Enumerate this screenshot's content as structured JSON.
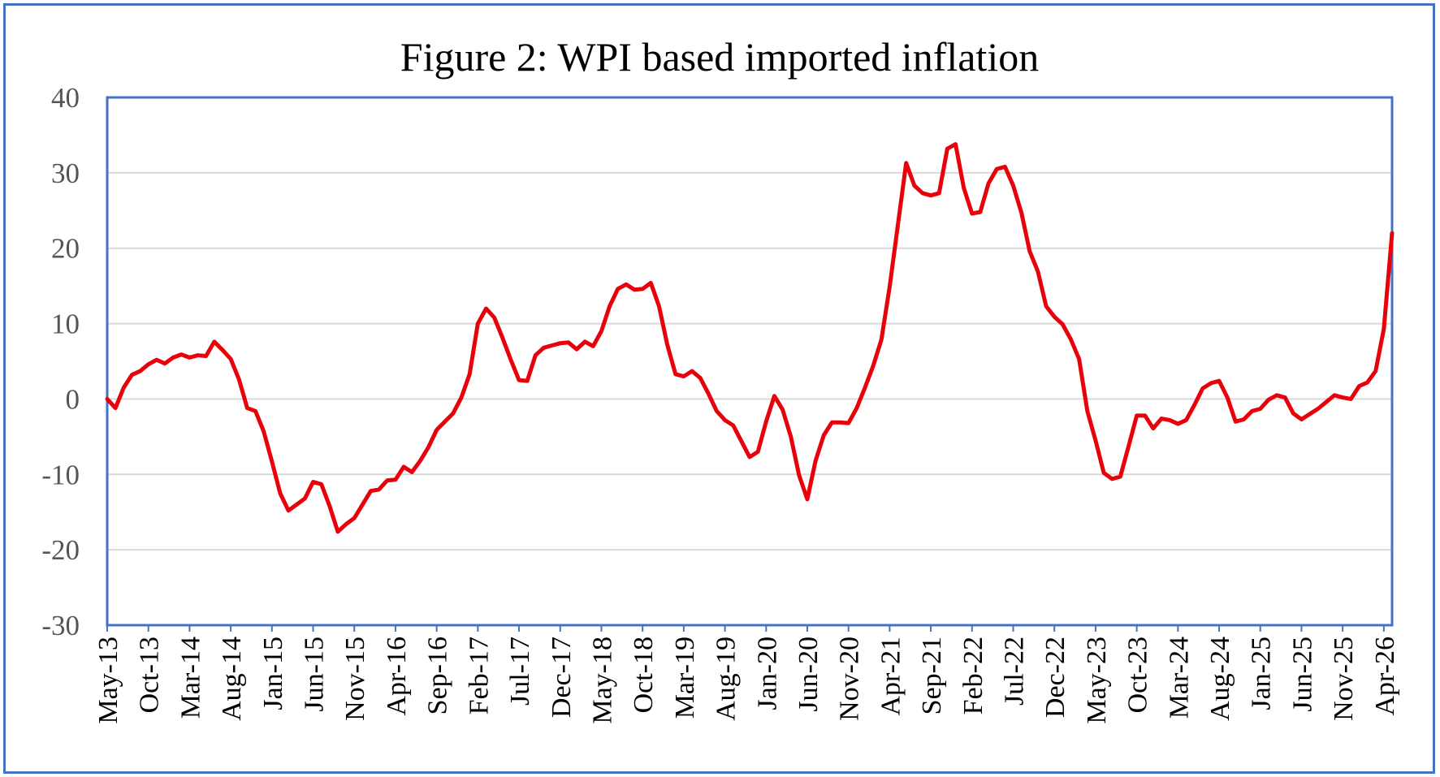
{
  "chart_data": {
    "type": "line",
    "title": "Figure 2: WPI based imported inflation",
    "xlabel": "",
    "ylabel": "",
    "ylim": [
      -30,
      40
    ],
    "y_ticks": [
      -30,
      -20,
      -10,
      0,
      10,
      20,
      30,
      40
    ],
    "x_tick_labels": [
      "May-13",
      "Oct-13",
      "Mar-14",
      "Aug-14",
      "Jan-15",
      "Jun-15",
      "Nov-15",
      "Apr-16",
      "Sep-16",
      "Feb-17",
      "Jul-17",
      "Dec-17",
      "May-18",
      "Oct-18",
      "Mar-19",
      "Aug-19",
      "Jan-20",
      "Jun-20",
      "Nov-20",
      "Apr-21",
      "Sep-21",
      "Feb-22",
      "Jul-22",
      "Dec-22",
      "May-23",
      "Oct-23",
      "Mar-24",
      "Aug-24",
      "Jan-25",
      "Jun-25",
      "Nov-25",
      "Apr-26"
    ],
    "x_start": "May-13",
    "x_end": "Apr-26",
    "grid": true,
    "legend": "none",
    "line_color": "#e8000b",
    "series": [
      {
        "values": [
          0.0,
          -1.2,
          1.5,
          3.2,
          3.7,
          4.6,
          5.2,
          4.7,
          5.5,
          5.9,
          5.5,
          5.8,
          5.7,
          7.6,
          6.5,
          5.3,
          2.6,
          -1.2,
          -1.6,
          -4.3,
          -8.3,
          -12.5,
          -14.8,
          -14.0,
          -13.2,
          -11.0,
          -11.3,
          -14.2,
          -17.6,
          -16.6,
          -15.8,
          -14.0,
          -12.2,
          -12.0,
          -10.8,
          -10.7,
          -9.0,
          -9.7,
          -8.2,
          -6.4,
          -4.1,
          -3.0,
          -1.9,
          0.2,
          3.3,
          10.0,
          12.0,
          10.8,
          8.1,
          5.2,
          2.5,
          2.4,
          5.8,
          6.8,
          7.1,
          7.4,
          7.5,
          6.6,
          7.6,
          7.0,
          9.0,
          12.3,
          14.6,
          15.2,
          14.5,
          14.6,
          15.4,
          12.3,
          7.2,
          3.3,
          3.0,
          3.7,
          2.8,
          0.7,
          -1.6,
          -2.8,
          -3.5,
          -5.6,
          -7.7,
          -7.0,
          -3.0,
          0.4,
          -1.4,
          -5.0,
          -10.1,
          -13.3,
          -8.2,
          -4.8,
          -3.1,
          -3.1,
          -3.2,
          -1.2,
          1.5,
          4.4,
          7.9,
          14.9,
          23.1,
          31.3,
          28.3,
          27.3,
          27.0,
          27.3,
          33.2,
          33.8,
          28.0,
          24.6,
          24.8,
          28.6,
          30.5,
          30.8,
          28.3,
          24.7,
          19.6,
          16.9,
          12.3,
          10.9,
          9.9,
          7.9,
          5.3,
          -1.6,
          -5.5,
          -9.8,
          -10.6,
          -10.3,
          -6.3,
          -2.2,
          -2.2,
          -3.9,
          -2.6,
          -2.8,
          -3.3,
          -2.8,
          -0.8,
          1.4,
          2.1,
          2.4,
          0.2,
          -3.0,
          -2.7,
          -1.6,
          -1.3,
          -0.1,
          0.5,
          0.2,
          -1.9,
          -2.7,
          -2.0,
          -1.3,
          -0.4,
          0.5,
          0.2,
          0.0,
          1.7,
          2.2,
          3.7,
          9.3,
          22.0
        ]
      }
    ]
  }
}
